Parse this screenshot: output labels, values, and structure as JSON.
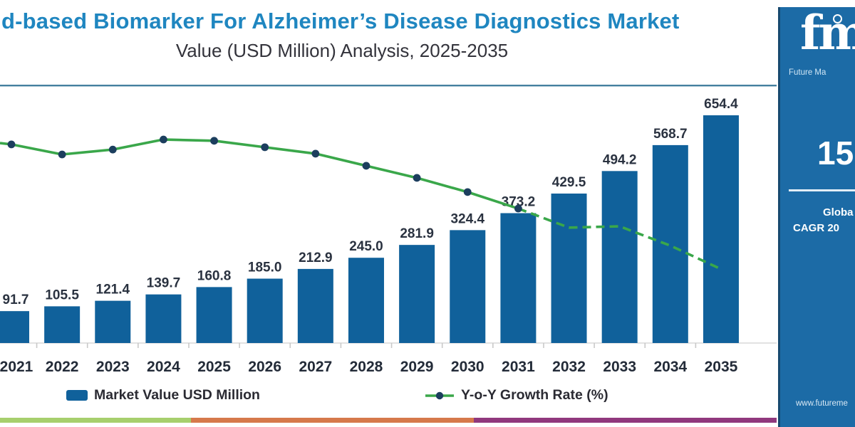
{
  "header": {
    "title": "d-based Biomarker For Alzheimer’s Disease Diagnostics Market",
    "subtitle": "Value (USD Million) Analysis, 2025-2035"
  },
  "legend": {
    "bar_label": "Market Value USD Million",
    "line_label": "Y-o-Y Growth Rate (%)"
  },
  "chart_data": {
    "type": "bar",
    "categories": [
      "2021",
      "2022",
      "2023",
      "2024",
      "2025",
      "2026",
      "2027",
      "2028",
      "2029",
      "2030",
      "2031",
      "2032",
      "2033",
      "2034",
      "2035"
    ],
    "series": [
      {
        "name": "Market Value USD Million",
        "type": "bar",
        "values": [
          91.7,
          105.5,
          121.4,
          139.7,
          160.8,
          185.0,
          212.9,
          245.0,
          281.9,
          324.4,
          373.2,
          429.5,
          494.2,
          568.7,
          654.4
        ]
      },
      {
        "name": "Y-o-Y Growth Rate (%)",
        "type": "line",
        "axis": "secondary (no visible scale)",
        "style": "solid with dot markers through 2031, dashed forecast 2031-2035",
        "solid_until_index": 10,
        "relative_heights": [
          0.771,
          0.732,
          0.751,
          0.79,
          0.785,
          0.76,
          0.735,
          0.688,
          0.641,
          0.586,
          0.522,
          0.448,
          0.453,
          0.378,
          0.287
        ]
      }
    ],
    "title": "d-based Biomarker For Alzheimer’s Disease Diagnostics Market",
    "xlabel": "",
    "ylabel": "",
    "value_labels": true,
    "grid": false,
    "legend_position": "bottom"
  },
  "panel": {
    "logo_text": "fmi",
    "logo_subtext": "Future Ma",
    "stat_value": "15.",
    "stat_label_line1": "Globa",
    "stat_label_line2": "CAGR 20",
    "website": "www.futureme"
  },
  "colors": {
    "bar": "#10619b",
    "line_green": "#3aa74a",
    "dot_navy": "#1c3e5e",
    "title_blue": "#1f86c0",
    "top_rule": "#45809f",
    "axis_gray": "#d8d8d8",
    "tick_gray": "#c9c9c9",
    "label_dark": "#2a3240",
    "panel_bg": "#1c6ba6",
    "strip_green": "#a7cf6d",
    "strip_orange": "#d6794b",
    "strip_purple": "#90387d"
  }
}
